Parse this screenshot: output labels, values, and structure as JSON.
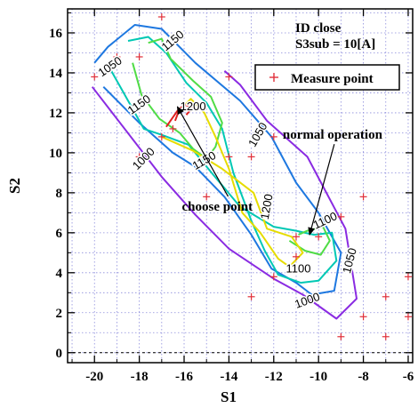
{
  "chart_data": {
    "type": "contour",
    "title_lines": [
      "ID close",
      "S3sub = 10[A]"
    ],
    "xlabel": "S1",
    "ylabel": "S2",
    "xlim": [
      -21.2,
      -5.8
    ],
    "ylim": [
      -0.5,
      17.2
    ],
    "xticks": [
      -20,
      -18,
      -16,
      -14,
      -12,
      -10,
      -8,
      -6
    ],
    "yticks": [
      0,
      2,
      4,
      6,
      8,
      10,
      12,
      14,
      16
    ],
    "grid": true,
    "legend": {
      "position": "top-right",
      "entries": [
        {
          "label": "Measure point",
          "marker": "+",
          "color": "#e0303a"
        }
      ]
    },
    "measure_points": [
      [
        -17.0,
        16.8
      ],
      [
        -19.0,
        14.8
      ],
      [
        -18.0,
        14.8
      ],
      [
        -14.0,
        13.8
      ],
      [
        -20.0,
        13.8
      ],
      [
        -16.5,
        11.2
      ],
      [
        -17.0,
        10.8
      ],
      [
        -12.0,
        10.8
      ],
      [
        -18.0,
        9.8
      ],
      [
        -14.0,
        9.8
      ],
      [
        -13.0,
        9.8
      ],
      [
        -15.0,
        7.8
      ],
      [
        -8.0,
        7.8
      ],
      [
        -9.0,
        6.8
      ],
      [
        -11.0,
        5.8
      ],
      [
        -10.0,
        5.8
      ],
      [
        -11.0,
        4.8
      ],
      [
        -12.0,
        3.8
      ],
      [
        -6.0,
        3.8
      ],
      [
        -13.0,
        2.8
      ],
      [
        -7.0,
        2.8
      ],
      [
        -8.0,
        1.8
      ],
      [
        -6.0,
        1.8
      ],
      [
        -9.0,
        0.8
      ],
      [
        -7.0,
        0.8
      ]
    ],
    "contour_levels": [
      {
        "level": 1000,
        "color": "#8a2be2",
        "paths": [
          [
            [
              -20.1,
              13.3
            ],
            [
              -17.0,
              8.8
            ],
            [
              -15.5,
              6.9
            ],
            [
              -14.0,
              5.2
            ],
            [
              -12.0,
              3.7
            ],
            [
              -10.7,
              2.9
            ],
            [
              -9.2,
              1.7
            ],
            [
              -8.3,
              2.7
            ],
            [
              -8.8,
              6.2
            ],
            [
              -10.5,
              9.8
            ],
            [
              -12.3,
              11.6
            ],
            [
              -13.5,
              13.4
            ],
            [
              -14.2,
              14.1
            ]
          ]
        ]
      },
      {
        "level": 1050,
        "color": "#1e78e0",
        "paths": [
          [
            [
              -19.6,
              13.3
            ],
            [
              -18.0,
              11.5
            ],
            [
              -16.5,
              10.0
            ],
            [
              -15.5,
              9.3
            ],
            [
              -14.2,
              7.8
            ],
            [
              -13.0,
              5.9
            ],
            [
              -12.1,
              4.2
            ],
            [
              -11.0,
              3.5
            ],
            [
              -10.3,
              2.9
            ],
            [
              -9.3,
              3.1
            ],
            [
              -9.0,
              5.0
            ],
            [
              -10.0,
              7.0
            ],
            [
              -11.0,
              8.5
            ],
            [
              -12.1,
              10.8
            ],
            [
              -13.5,
              12.6
            ],
            [
              -15.5,
              14.5
            ],
            [
              -17.0,
              16.2
            ],
            [
              -18.2,
              16.4
            ],
            [
              -19.4,
              15.3
            ],
            [
              -20.0,
              14.5
            ]
          ]
        ]
      },
      {
        "level": 1100,
        "color": "#00c8b4",
        "paths": [
          [
            [
              -19.3,
              14.2
            ],
            [
              -18.3,
              12.2
            ],
            [
              -17.8,
              11.2
            ],
            [
              -17.0,
              10.9
            ],
            [
              -15.8,
              10.4
            ],
            [
              -14.7,
              8.9
            ],
            [
              -13.5,
              7.3
            ],
            [
              -12.0,
              6.3
            ],
            [
              -11.0,
              6.1
            ],
            [
              -10.2,
              5.9
            ],
            [
              -9.4,
              6.0
            ],
            [
              -9.2,
              4.6
            ],
            [
              -10.0,
              3.6
            ],
            [
              -10.8,
              3.5
            ],
            [
              -11.8,
              3.9
            ],
            [
              -12.4,
              5.1
            ],
            [
              -13.0,
              6.6
            ],
            [
              -13.8,
              9.0
            ],
            [
              -14.3,
              11.2
            ],
            [
              -15.0,
              12.5
            ],
            [
              -15.9,
              13.5
            ],
            [
              -16.8,
              15.0
            ],
            [
              -17.6,
              15.8
            ],
            [
              -18.5,
              15.6
            ]
          ]
        ]
      },
      {
        "level": 1150,
        "color": "#50dc46",
        "paths": [
          [
            [
              -18.3,
              14.5
            ],
            [
              -17.9,
              12.9
            ],
            [
              -17.1,
              11.7
            ],
            [
              -16.2,
              11.0
            ],
            [
              -15.6,
              10.2
            ],
            [
              -15.0,
              9.7
            ],
            [
              -14.6,
              10.3
            ],
            [
              -14.3,
              11.5
            ],
            [
              -14.8,
              12.8
            ],
            [
              -15.6,
              13.6
            ],
            [
              -16.6,
              14.7
            ],
            [
              -17.0,
              15.7
            ],
            [
              -17.6,
              15.5
            ]
          ],
          [
            [
              -11.3,
              5.6
            ],
            [
              -10.6,
              5.1
            ],
            [
              -9.9,
              4.9
            ],
            [
              -9.5,
              5.6
            ],
            [
              -9.8,
              6.3
            ],
            [
              -10.5,
              6.1
            ],
            [
              -10.9,
              5.9
            ]
          ]
        ]
      },
      {
        "level": 1200,
        "color": "#e6dc00",
        "paths": [
          [
            [
              -17.0,
              10.8
            ],
            [
              -15.6,
              10.1
            ],
            [
              -14.3,
              9.2
            ],
            [
              -12.9,
              8.0
            ],
            [
              -12.3,
              6.2
            ],
            [
              -11.2,
              5.8
            ],
            [
              -10.7,
              5.0
            ],
            [
              -11.3,
              4.3
            ],
            [
              -11.8,
              4.7
            ],
            [
              -12.6,
              6.0
            ],
            [
              -13.4,
              7.0
            ],
            [
              -14.0,
              9.2
            ],
            [
              -14.6,
              10.8
            ],
            [
              -15.1,
              12.0
            ],
            [
              -15.7,
              12.7
            ],
            [
              -16.3,
              12.0
            ]
          ]
        ]
      },
      {
        "level": 1250,
        "color": "#e02020",
        "paths": [
          [
            [
              -16.8,
              11.3
            ],
            [
              -16.3,
              12.1
            ],
            [
              -16.0,
              12.4
            ],
            [
              -15.6,
              12.3
            ],
            [
              -15.9,
              11.9
            ]
          ],
          [
            [
              -16.4,
              11.6
            ],
            [
              -16.2,
              12.2
            ]
          ]
        ]
      }
    ],
    "contour_labels": [
      {
        "text": "1150",
        "x": -16.5,
        "y": 15.6,
        "angle": -40
      },
      {
        "text": "1050",
        "x": -19.3,
        "y": 14.3,
        "angle": -35
      },
      {
        "text": "1200",
        "x": -15.6,
        "y": 12.3,
        "angle": 0
      },
      {
        "text": "1150",
        "x": -18.0,
        "y": 12.4,
        "angle": -35
      },
      {
        "text": "1050",
        "x": -12.7,
        "y": 10.9,
        "angle": -60
      },
      {
        "text": "1150",
        "x": -15.1,
        "y": 9.6,
        "angle": -30
      },
      {
        "text": "1000",
        "x": -17.8,
        "y": 9.7,
        "angle": -45
      },
      {
        "text": "1200",
        "x": -12.3,
        "y": 7.3,
        "angle": -80
      },
      {
        "text": "1100",
        "x": -9.7,
        "y": 6.6,
        "angle": -25
      },
      {
        "text": "1100",
        "x": -10.9,
        "y": 4.2,
        "angle": 0
      },
      {
        "text": "1050",
        "x": -8.6,
        "y": 4.6,
        "angle": -75
      },
      {
        "text": "1000",
        "x": -10.5,
        "y": 2.6,
        "angle": -20
      }
    ],
    "annotations": [
      {
        "text": "normal operation",
        "x": -11.6,
        "y": 10.7,
        "arrow_to": [
          -10.4,
          5.9
        ]
      },
      {
        "text": "choose point",
        "x": -16.1,
        "y": 7.1,
        "arrow_to": [
          -16.3,
          12.3
        ]
      }
    ]
  }
}
